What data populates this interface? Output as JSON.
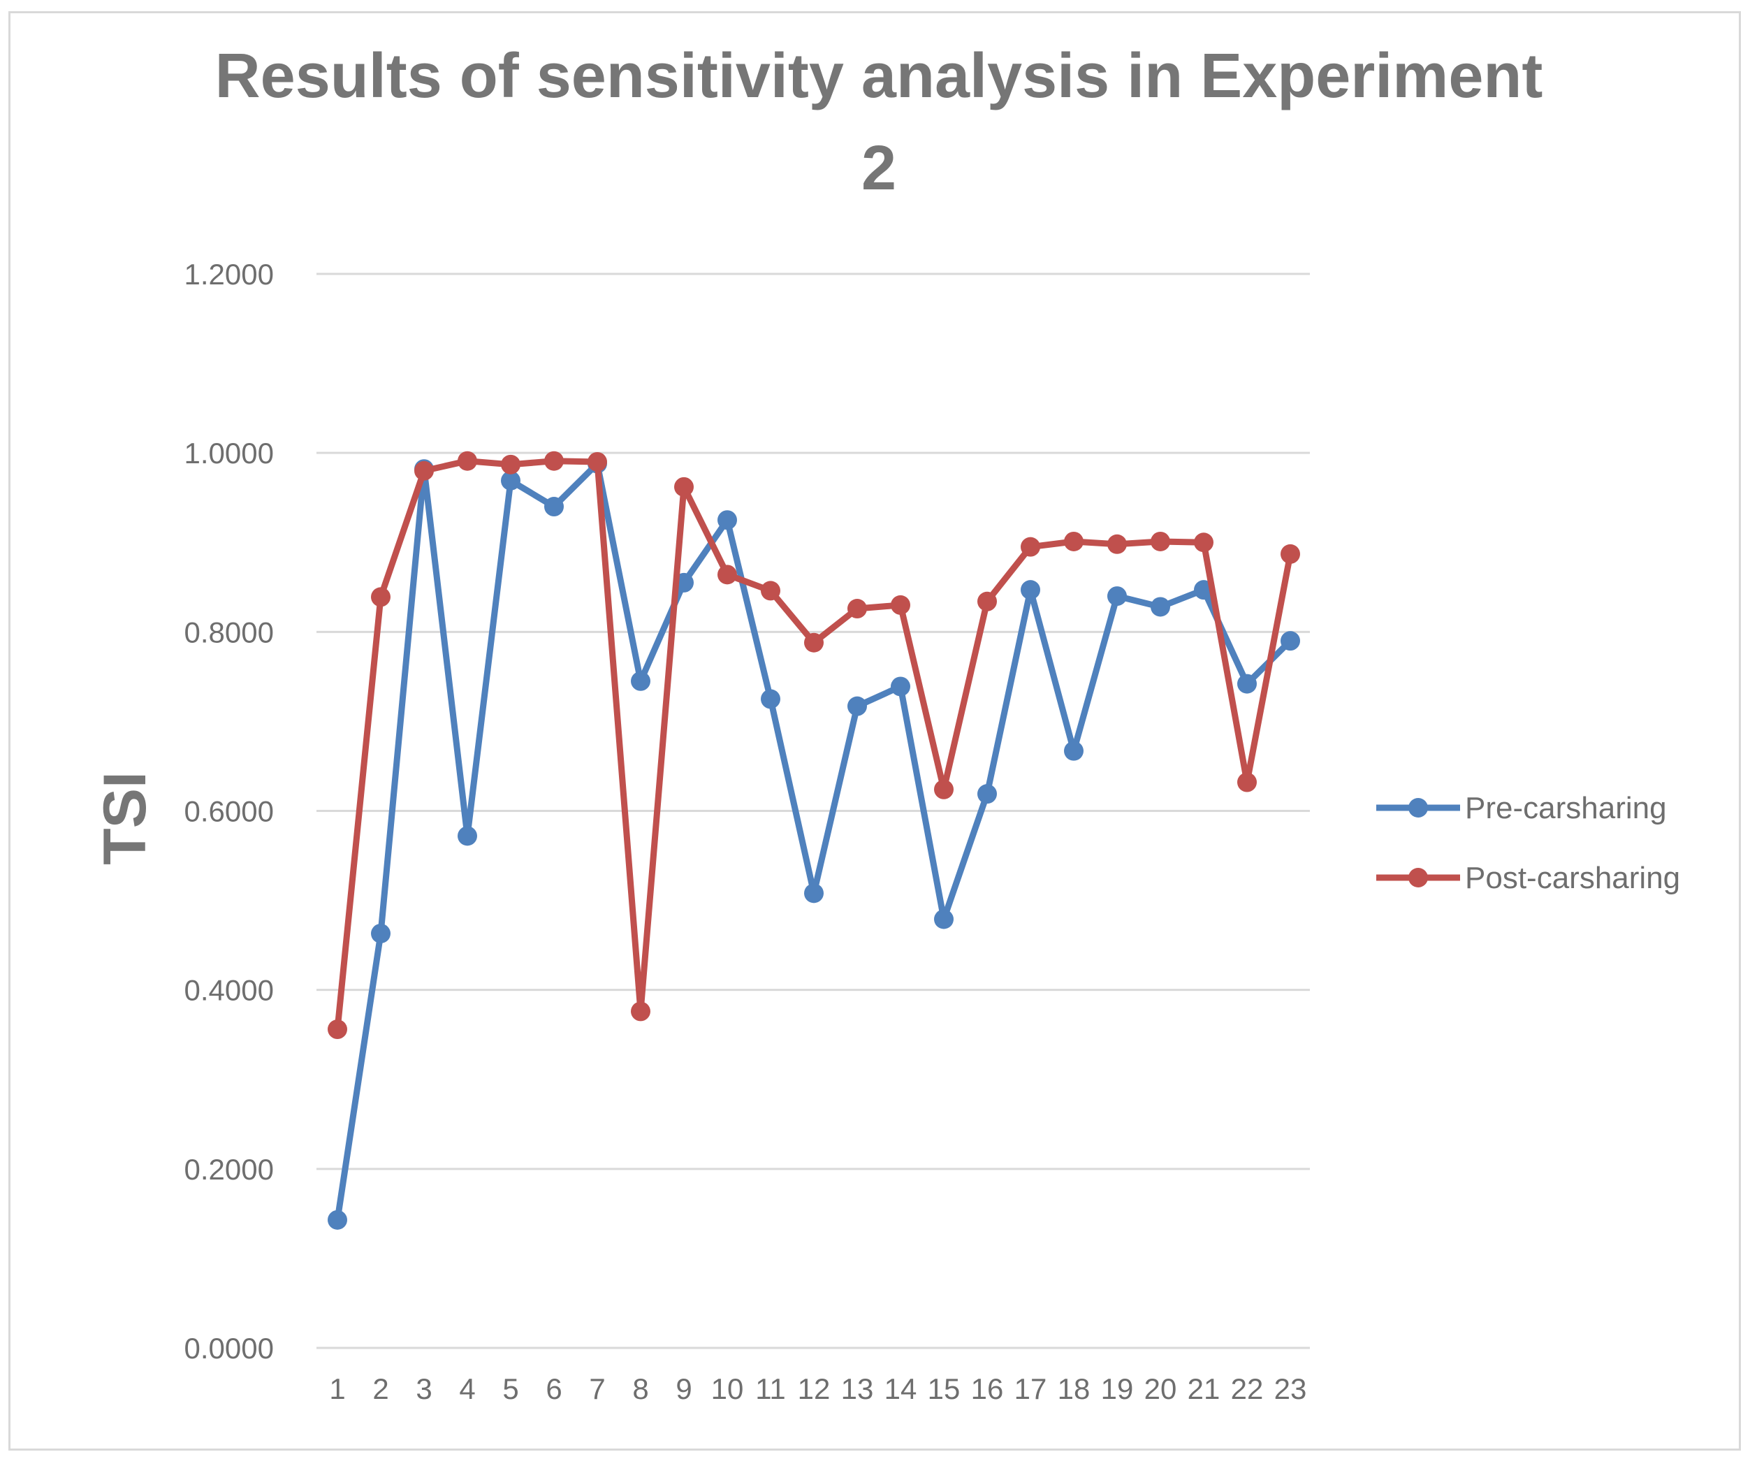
{
  "chart_data": {
    "type": "line",
    "title": "Results of sensitivity analysis in Experiment 2",
    "title_lines": [
      "Results of sensitivity analysis in Experiment",
      "2"
    ],
    "xlabel": "",
    "ylabel": "TSI",
    "ylim": [
      0,
      1.2
    ],
    "yticks": [
      "0.0000",
      "0.2000",
      "0.4000",
      "0.6000",
      "0.8000",
      "1.0000",
      "1.2000"
    ],
    "ytick_values": [
      0,
      0.2,
      0.4,
      0.6,
      0.8,
      1.0,
      1.2
    ],
    "grid": true,
    "legend_position": "right",
    "categories": [
      "1",
      "2",
      "3",
      "4",
      "5",
      "6",
      "7",
      "8",
      "9",
      "10",
      "11",
      "12",
      "13",
      "14",
      "15",
      "16",
      "17",
      "18",
      "19",
      "20",
      "21",
      "22",
      "23"
    ],
    "series": [
      {
        "name": "Pre-carsharing",
        "color": "#4f81bd",
        "values": [
          0.143,
          0.463,
          0.982,
          0.572,
          0.969,
          0.94,
          0.988,
          0.745,
          0.855,
          0.925,
          0.725,
          0.508,
          0.717,
          0.739,
          0.479,
          0.619,
          0.847,
          0.667,
          0.84,
          0.828,
          0.847,
          0.742,
          0.79
        ]
      },
      {
        "name": "Post-carsharing",
        "color": "#c0504d",
        "values": [
          0.356,
          0.839,
          0.98,
          0.991,
          0.987,
          0.991,
          0.99,
          0.376,
          0.962,
          0.864,
          0.846,
          0.788,
          0.826,
          0.83,
          0.624,
          0.834,
          0.895,
          0.901,
          0.898,
          0.901,
          0.9,
          0.632,
          0.887
        ]
      }
    ]
  }
}
